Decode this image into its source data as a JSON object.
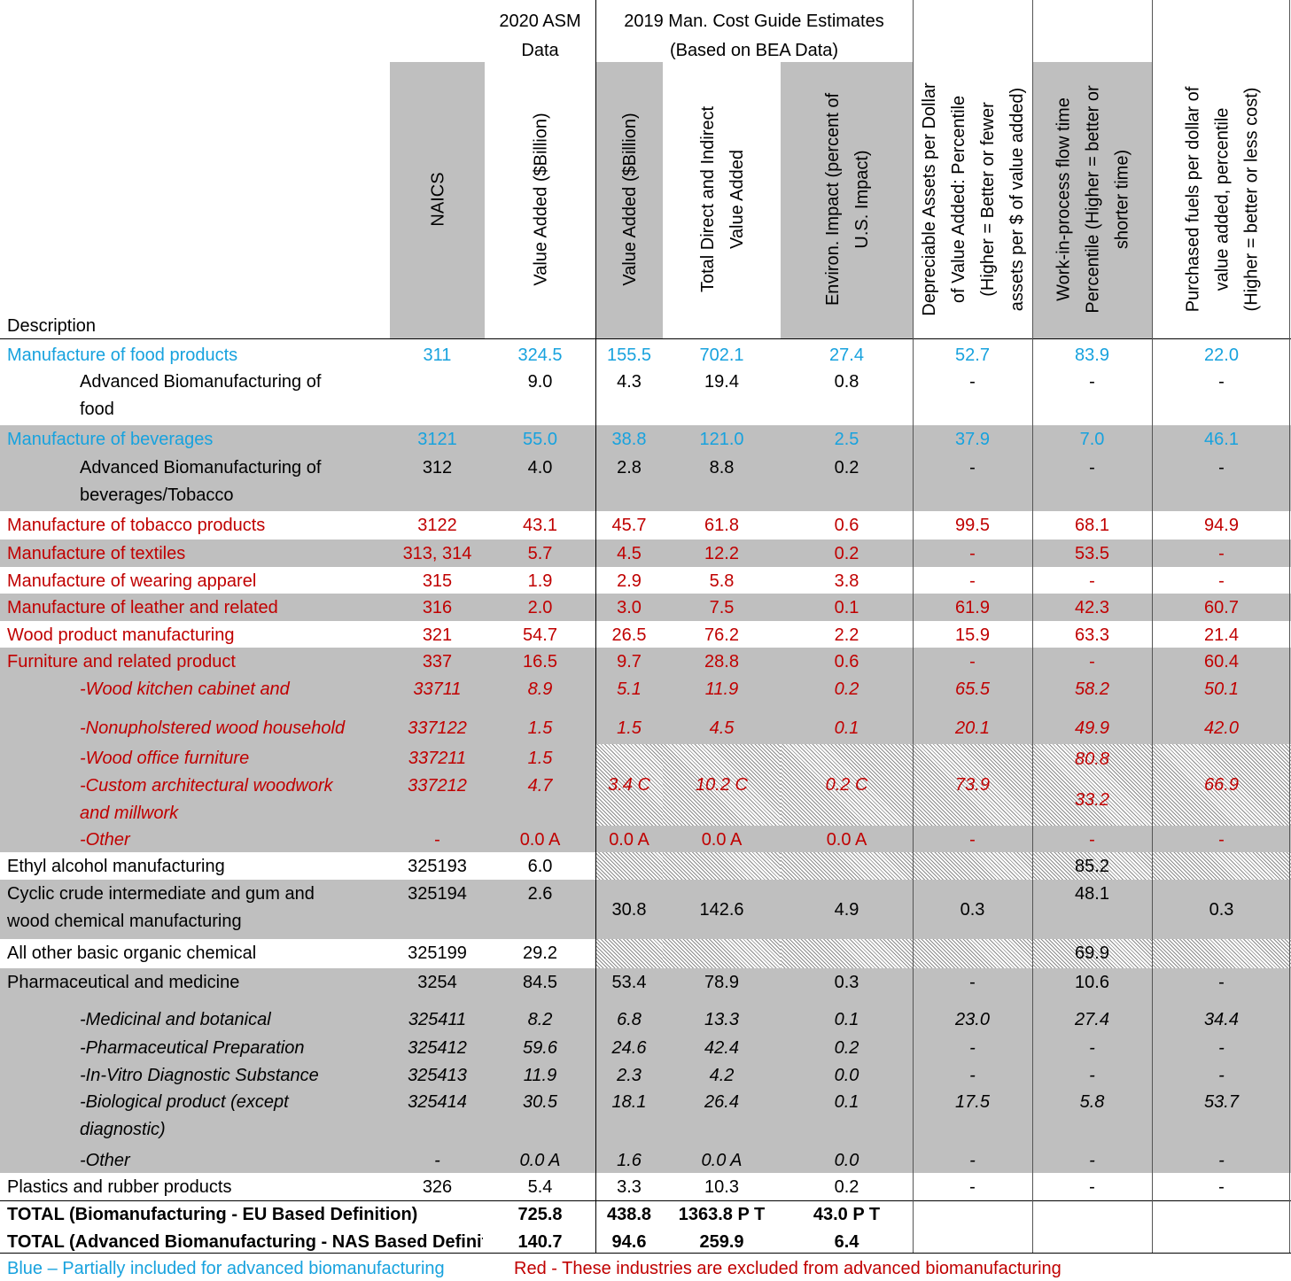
{
  "table": {
    "groups": [
      [
        "2020 ASM",
        "Data"
      ],
      [
        "2019 Man. Cost Guide Estimates",
        "(Based on BEA Data)"
      ]
    ],
    "columns": [
      [
        "Description"
      ],
      [
        "NAICS"
      ],
      [
        "Value Added ($Billion)"
      ],
      [
        "Value Added ($Billion)"
      ],
      [
        "Total Direct and Indirect",
        "Value Added"
      ],
      [
        "Environ. Impact (percent of",
        "U.S. Impact)"
      ],
      [
        "Depreciable Assets per Dollar",
        "of Value Added: Percentile",
        "(Higher = Better or fewer",
        "assets per $ of value added)"
      ],
      [
        "Work-in-process flow time",
        "Percentile (Higher = better or",
        "shorter time)"
      ],
      [
        "Purchased fuels per dollar of",
        "value added, percentile",
        "(Higher = better or less cost)"
      ]
    ],
    "rows": [
      {
        "cells": [
          "Manufacture of food products",
          "311",
          "324.5",
          "155.5",
          "702.1",
          "27.4",
          "52.7",
          "83.9",
          "22.0"
        ]
      },
      {
        "cells": [
          [
            "Advanced Biomanufacturing of",
            "food"
          ],
          null,
          "9.0",
          "4.3",
          "19.4",
          "0.8",
          "-",
          "-",
          "-"
        ]
      },
      {
        "cells": [
          "Manufacture of beverages",
          "3121",
          "55.0",
          "38.8",
          "121.0",
          "2.5",
          "37.9",
          "7.0",
          "46.1"
        ]
      },
      {
        "cells": [
          [
            "Advanced Biomanufacturing of",
            "beverages/Tobacco"
          ],
          "312",
          "4.0",
          "2.8",
          "8.8",
          "0.2",
          "-",
          "-",
          "-"
        ]
      },
      {
        "cells": [
          "Manufacture of tobacco products",
          "3122",
          "43.1",
          "45.7",
          "61.8",
          "0.6",
          "99.5",
          "68.1",
          "94.9"
        ]
      },
      {
        "cells": [
          "Manufacture of textiles",
          "313, 314",
          "5.7",
          "4.5",
          "12.2",
          "0.2",
          "-",
          "53.5",
          "-"
        ]
      },
      {
        "cells": [
          "Manufacture of wearing apparel",
          "315",
          "1.9",
          "2.9",
          "5.8",
          "3.8",
          "-",
          "-",
          "-"
        ]
      },
      {
        "cells": [
          "Manufacture of leather and related",
          "316",
          "2.0",
          "3.0",
          "7.5",
          "0.1",
          "61.9",
          "42.3",
          "60.7"
        ]
      },
      {
        "cells": [
          "Wood product manufacturing",
          "321",
          "54.7",
          "26.5",
          "76.2",
          "2.2",
          "15.9",
          "63.3",
          "21.4"
        ]
      },
      {
        "cells": [
          "Furniture and related product",
          "337",
          "16.5",
          "9.7",
          "28.8",
          "0.6",
          "-",
          "-",
          "60.4"
        ]
      },
      {
        "cells": [
          "-Wood kitchen cabinet and",
          "33711",
          "8.9",
          "5.1",
          "11.9",
          "0.2",
          "65.5",
          "58.2",
          "50.1"
        ]
      },
      {
        "cells": [
          "-Nonupholstered wood household",
          "337122",
          "1.5",
          "1.5",
          "4.5",
          "0.1",
          "20.1",
          "49.9",
          "42.0"
        ]
      },
      {
        "cells": [
          [
            "-Wood office furniture",
            "-Custom architectural woodwork",
            "and millwork"
          ],
          [
            "337211",
            "337212"
          ],
          [
            "1.5",
            "4.7"
          ],
          "3.4 C",
          "10.2 C",
          "0.2 C",
          "73.9",
          [
            "80.8",
            "33.2"
          ],
          "66.9"
        ]
      },
      {
        "cells": [
          "-Other",
          "-",
          "0.0 A",
          "0.0 A",
          "0.0 A",
          "0.0 A",
          "-",
          "-",
          "-"
        ]
      },
      {
        "cells": [
          "Ethyl alcohol manufacturing",
          "325193",
          "6.0",
          null,
          null,
          null,
          null,
          "85.2",
          null
        ]
      },
      {
        "cells": [
          [
            "Cyclic crude intermediate and gum and",
            "wood chemical manufacturing"
          ],
          "325194",
          "2.6",
          "30.8",
          "142.6",
          "4.9",
          "0.3",
          "48.1",
          "0.3"
        ]
      },
      {
        "cells": [
          "All other basic organic chemical",
          "325199",
          "29.2",
          null,
          null,
          null,
          null,
          "69.9",
          null
        ]
      },
      {
        "cells": [
          "Pharmaceutical and medicine",
          "3254",
          "84.5",
          "53.4",
          "78.9",
          "0.3",
          "-",
          "10.6",
          "-"
        ]
      },
      {
        "cells": [
          "-Medicinal and botanical",
          "325411",
          "8.2",
          "6.8",
          "13.3",
          "0.1",
          "23.0",
          "27.4",
          "34.4"
        ]
      },
      {
        "cells": [
          "-Pharmaceutical Preparation",
          "325412",
          "59.6",
          "24.6",
          "42.4",
          "0.2",
          "-",
          "-",
          "-"
        ]
      },
      {
        "cells": [
          "-In-Vitro Diagnostic Substance",
          "325413",
          "11.9",
          "2.3",
          "4.2",
          "0.0",
          "-",
          "-",
          "-"
        ]
      },
      {
        "cells": [
          [
            "-Biological product (except",
            "diagnostic)"
          ],
          "325414",
          "30.5",
          "18.1",
          "26.4",
          "0.1",
          "17.5",
          "5.8",
          "53.7"
        ]
      },
      {
        "cells": [
          "-Other",
          "-",
          "0.0 A",
          "1.6",
          "0.0 A",
          "0.0",
          "-",
          "-",
          "-"
        ]
      },
      {
        "cells": [
          "Plastics and rubber products",
          "326",
          "5.4",
          "3.3",
          "10.3",
          "0.2",
          "-",
          "-",
          "-"
        ]
      },
      {
        "cells": [
          "TOTAL (Biomanufacturing - EU Based Definition)",
          null,
          "725.8",
          "438.8",
          "1363.8 P T",
          "43.0 P T"
        ]
      },
      {
        "cells": [
          "TOTAL (Advanced Biomanufacturing - NAS Based Definition)",
          null,
          "140.7",
          "94.6",
          "259.9",
          "6.4"
        ]
      }
    ],
    "legend": [
      "Blue – Partially included for advanced biomanufacturing",
      "Red - These industries are excluded from advanced biomanufacturing"
    ]
  }
}
